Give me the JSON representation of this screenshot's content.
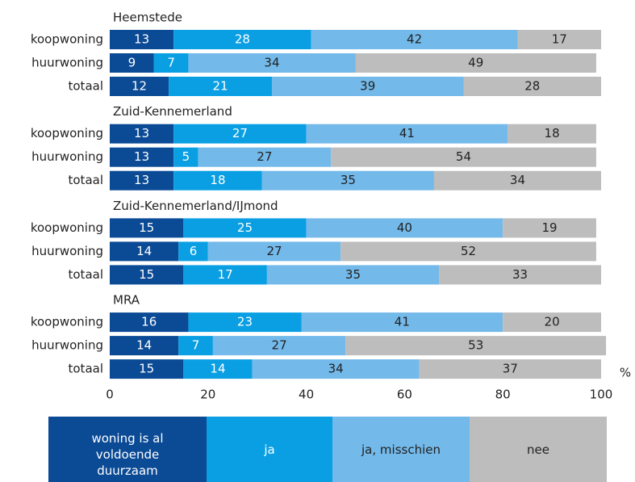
{
  "chart_data": {
    "type": "stacked_bar_horizontal",
    "group_titles": [
      "Heemstede",
      "Zuid-Kennemerland",
      "Zuid-Kennemerland/IJmond",
      "MRA"
    ],
    "categories": [
      "koopwoning",
      "huurwoning",
      "totaal",
      "koopwoning",
      "huurwoning",
      "totaal",
      "koopwoning",
      "huurwoning",
      "totaal",
      "koopwoning",
      "huurwoning",
      "totaal"
    ],
    "series": [
      {
        "name": "woning is al voldoende duurzaam",
        "color": "#0b4a95",
        "values": [
          13,
          9,
          12,
          13,
          13,
          13,
          15,
          14,
          15,
          16,
          14,
          15
        ]
      },
      {
        "name": "ja",
        "color": "#0a9fe3",
        "values": [
          28,
          7,
          21,
          27,
          5,
          18,
          25,
          6,
          17,
          23,
          7,
          14
        ]
      },
      {
        "name": "ja, misschien",
        "color": "#73b9ea",
        "values": [
          42,
          34,
          39,
          41,
          27,
          35,
          40,
          27,
          35,
          41,
          27,
          34
        ]
      },
      {
        "name": "nee",
        "color": "#bdbdbd",
        "values": [
          17,
          49,
          28,
          18,
          54,
          34,
          19,
          52,
          33,
          20,
          53,
          37
        ]
      }
    ],
    "x_unit": "%",
    "xlim": [
      0,
      100
    ],
    "xticks": [
      0,
      20,
      40,
      60,
      80,
      100
    ]
  }
}
